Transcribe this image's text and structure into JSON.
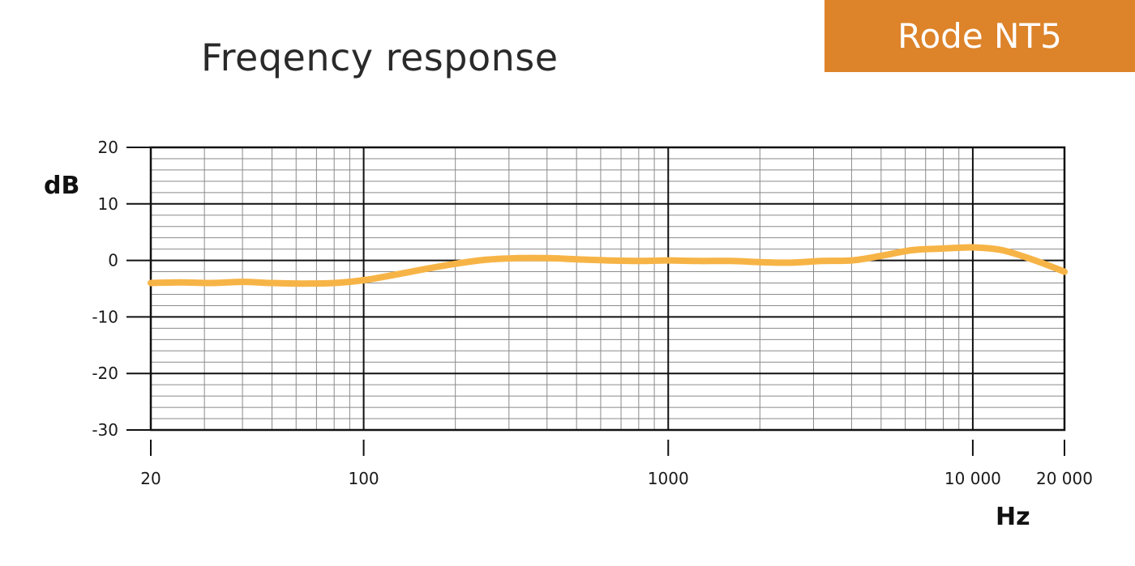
{
  "header": {
    "title": "Freqency response",
    "badge": "Rode NT5"
  },
  "colors": {
    "accent": "#dd832a",
    "curve": "#f7b446",
    "grid_major": "#111111",
    "grid_minor": "#8a8a8a"
  },
  "chart_data": {
    "type": "line",
    "title": "Freqency response",
    "xlabel": "Hz",
    "ylabel": "dB",
    "xscale": "log",
    "xlim": [
      20,
      20000
    ],
    "ylim": [
      -30,
      20
    ],
    "grid": true,
    "x_ticks": [
      {
        "value": 20,
        "label": "20"
      },
      {
        "value": 100,
        "label": "100"
      },
      {
        "value": 1000,
        "label": "1000"
      },
      {
        "value": 10000,
        "label": "10 000"
      },
      {
        "value": 20000,
        "label": "20 000"
      }
    ],
    "y_ticks": [
      {
        "value": 20,
        "label": "20"
      },
      {
        "value": 10,
        "label": "10"
      },
      {
        "value": 0,
        "label": "0"
      },
      {
        "value": -10,
        "label": "-10"
      },
      {
        "value": -20,
        "label": "-20"
      },
      {
        "value": -30,
        "label": "-30"
      }
    ],
    "series": [
      {
        "x": [
          20,
          25,
          32,
          40,
          50,
          63,
          80,
          100,
          125,
          160,
          200,
          250,
          320,
          400,
          500,
          630,
          800,
          1000,
          1250,
          1600,
          2000,
          2500,
          3200,
          4000,
          5000,
          6300,
          8000,
          10000,
          12500,
          16000,
          20000
        ],
        "y": [
          -4,
          -3.9,
          -4,
          -3.8,
          -4,
          -4.1,
          -4,
          -3.5,
          -2.6,
          -1.5,
          -0.6,
          0.1,
          0.4,
          0.4,
          0.2,
          0,
          -0.1,
          0,
          -0.1,
          -0.1,
          -0.3,
          -0.4,
          -0.1,
          0,
          0.8,
          1.8,
          2.1,
          2.3,
          1.8,
          0,
          -2
        ]
      }
    ]
  }
}
